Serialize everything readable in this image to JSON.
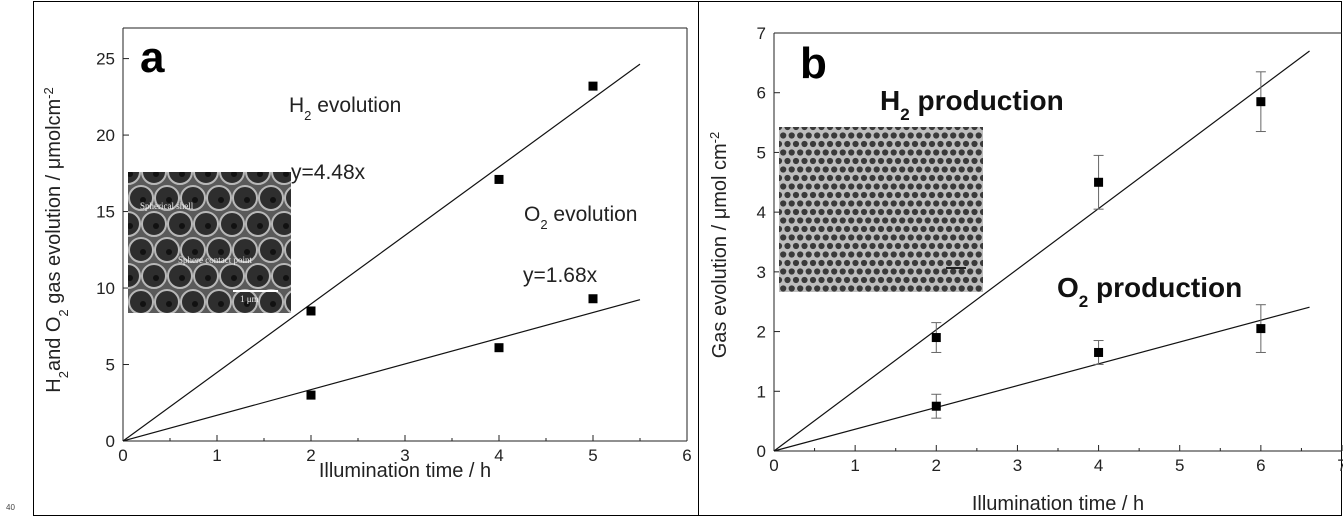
{
  "page_number": "40",
  "chart_data": [
    {
      "type": "scatter",
      "panel_label": "a",
      "xlabel": "Illumination time / h",
      "ylabel_parts": [
        "H",
        "2",
        "and O",
        "2",
        " gas evolution / μmolcm",
        "-2"
      ],
      "xlim": [
        0,
        6
      ],
      "ylim": [
        0,
        27
      ],
      "xticks": [
        0,
        1,
        2,
        3,
        4,
        5,
        6
      ],
      "yticks": [
        0,
        5,
        10,
        15,
        20,
        25
      ],
      "series": [
        {
          "label_parts": [
            "H",
            "2",
            " evolution"
          ],
          "fit_label": "y=4.48x",
          "slope": 4.48,
          "fit_end": 5.5,
          "points": [
            [
              2,
              8.5
            ],
            [
              4,
              17.1
            ],
            [
              5,
              23.2
            ]
          ]
        },
        {
          "label_parts": [
            "O",
            "2",
            " evolution"
          ],
          "fit_label": "y=1.68x",
          "slope": 1.68,
          "fit_end": 5.5,
          "points": [
            [
              2,
              3.0
            ],
            [
              4,
              6.1
            ],
            [
              5,
              9.3
            ]
          ]
        }
      ],
      "inset": {
        "labels": [
          "Spherical shell",
          "Sphere contact point",
          "1 μm"
        ]
      }
    },
    {
      "type": "scatter",
      "panel_label": "b",
      "xlabel": "Illumination time / h",
      "ylabel": "Gas evolution / μmol cm",
      "ylabel_sup": "-2",
      "xlim": [
        0,
        7
      ],
      "ylim": [
        0,
        7
      ],
      "xticks": [
        0,
        1,
        2,
        3,
        4,
        5,
        6,
        7
      ],
      "yticks": [
        0,
        1,
        2,
        3,
        4,
        5,
        6,
        7
      ],
      "series": [
        {
          "label_parts": [
            "H",
            "2",
            " production"
          ],
          "slope": 1.015,
          "fit_end": 6.6,
          "points": [
            [
              2,
              1.9,
              0.25
            ],
            [
              4,
              4.5,
              0.45
            ],
            [
              6,
              5.85,
              0.5
            ]
          ]
        },
        {
          "label_parts": [
            "O",
            "2",
            " production"
          ],
          "slope": 0.365,
          "fit_end": 6.6,
          "points": [
            [
              2,
              0.75,
              0.2
            ],
            [
              4,
              1.65,
              0.2
            ],
            [
              6,
              2.05,
              0.4
            ]
          ]
        }
      ]
    }
  ]
}
